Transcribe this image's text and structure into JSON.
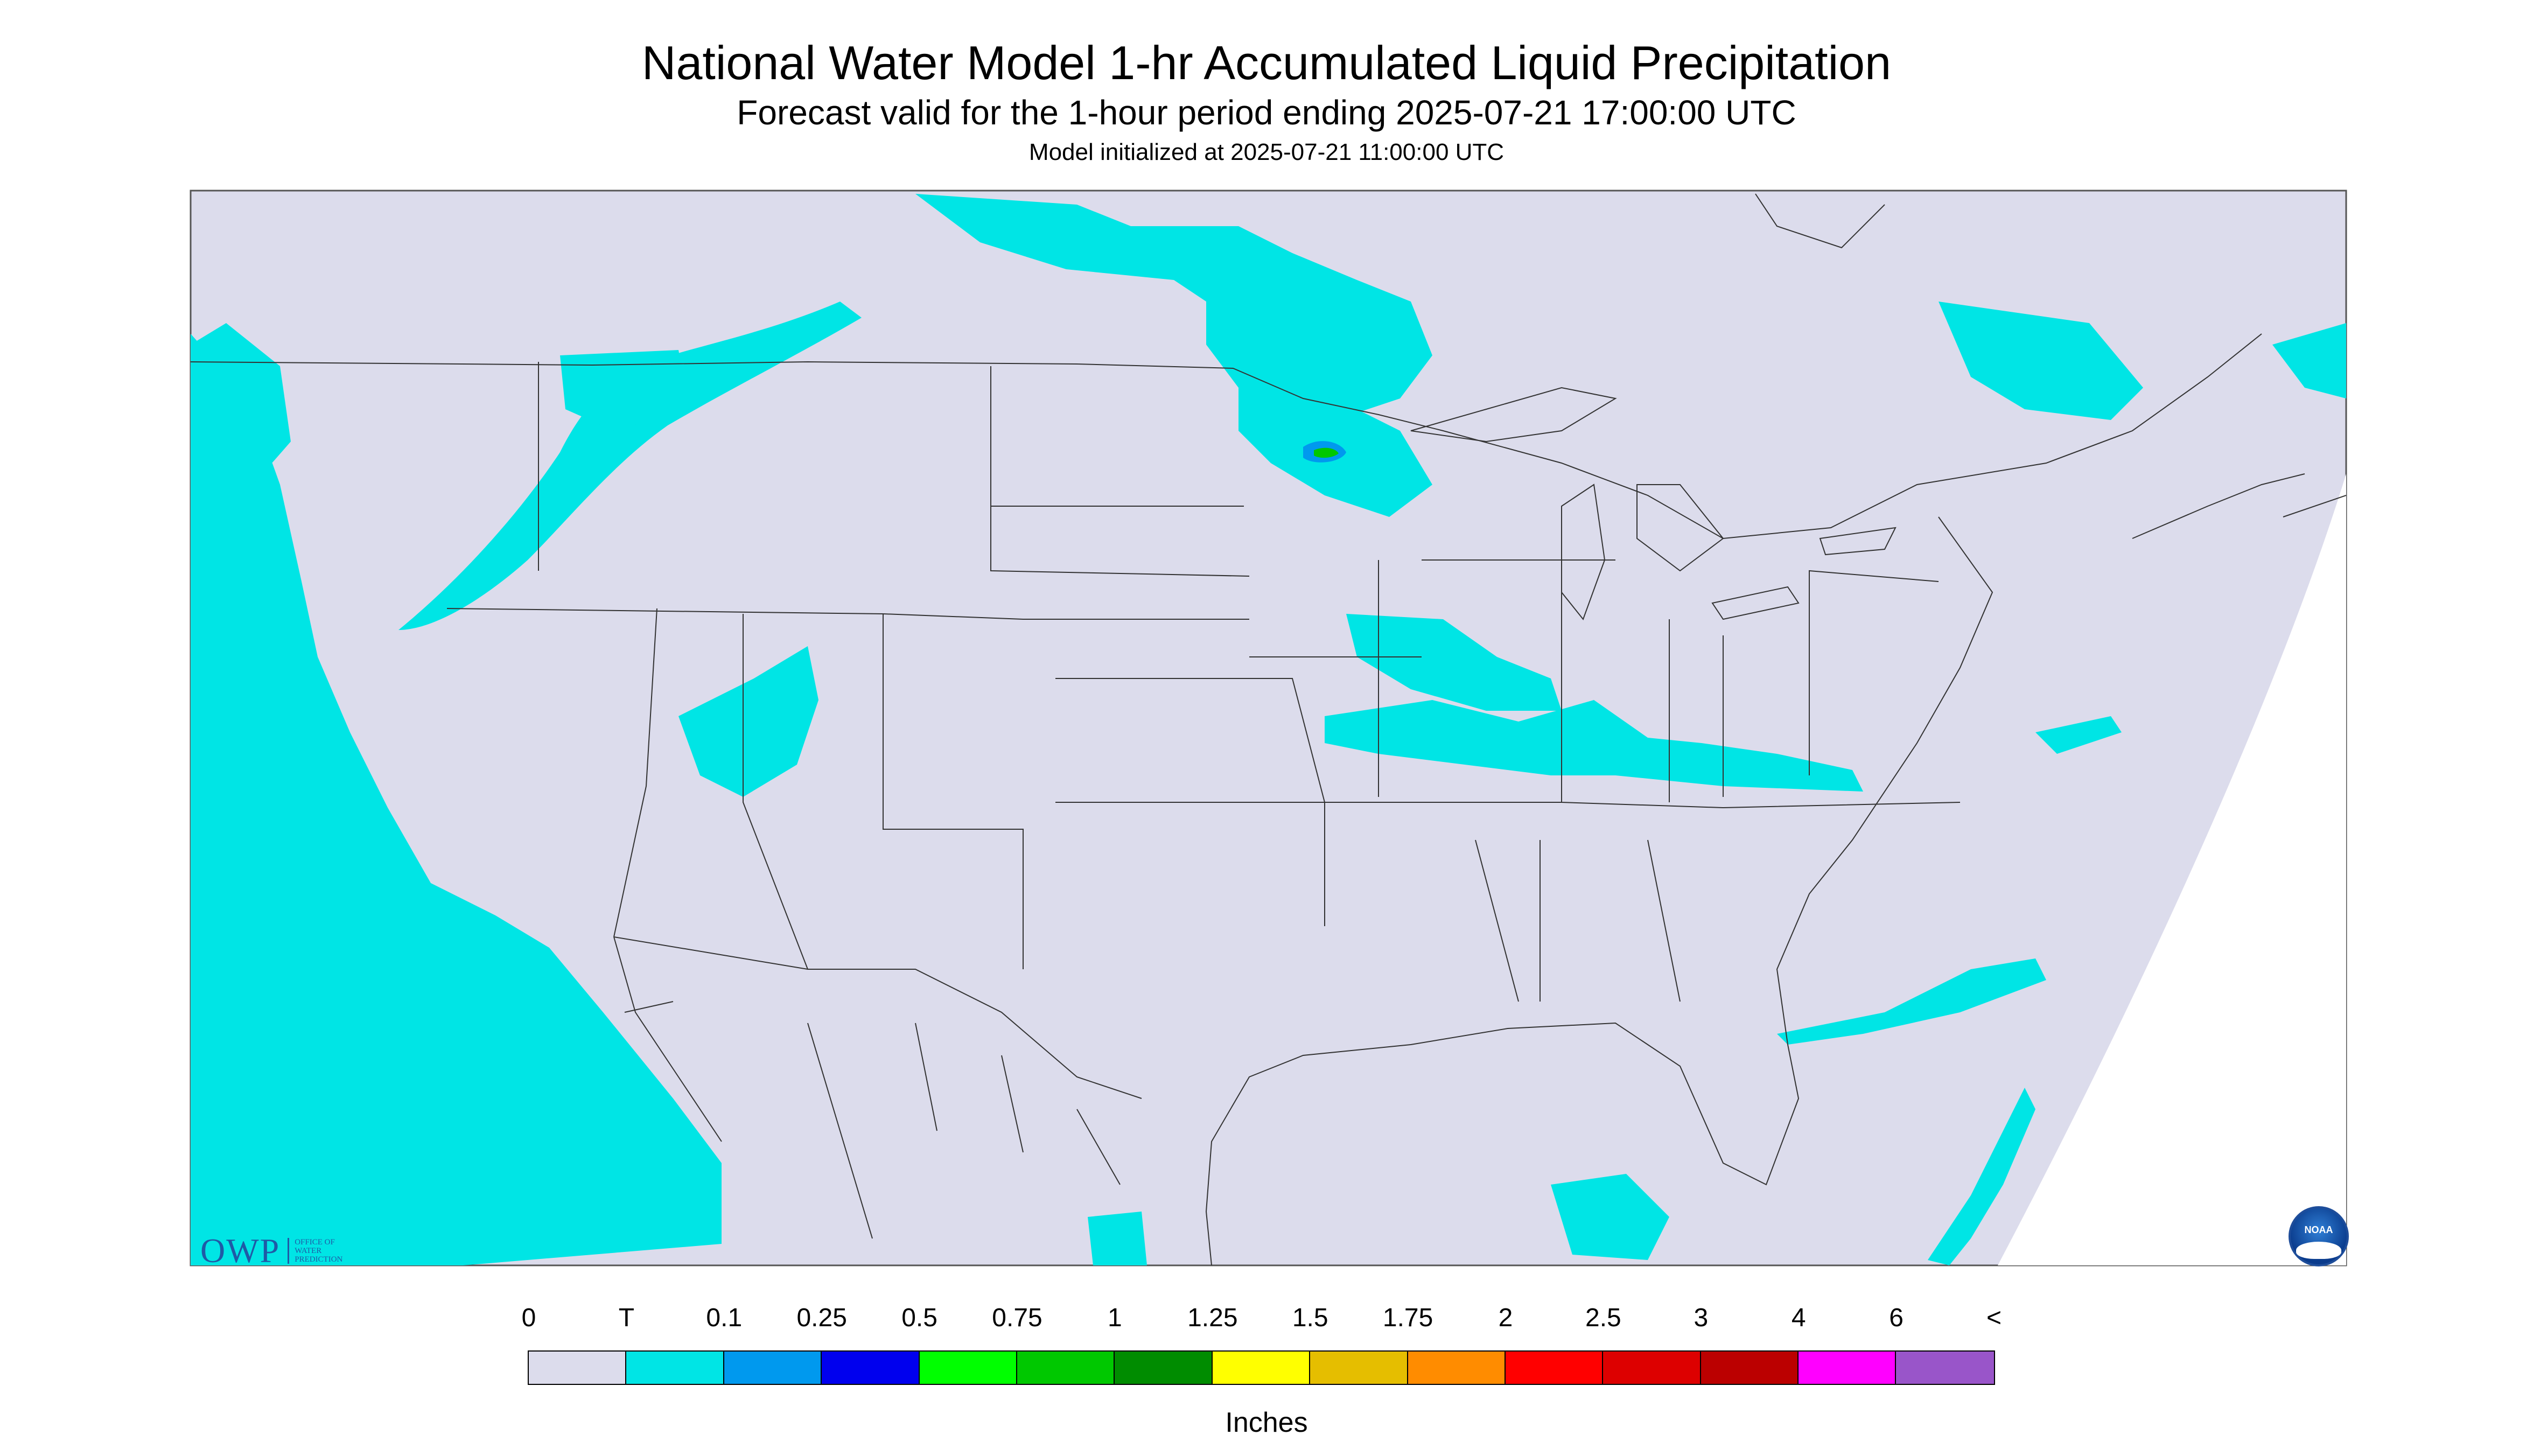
{
  "header": {
    "title": "National Water Model 1-hr Accumulated Liquid Precipitation",
    "subtitle": "Forecast valid for the 1-hour period ending 2025-07-21 17:00:00 UTC",
    "init_note": "Model initialized at 2025-07-21 11:00:00 UTC"
  },
  "logos": {
    "owp_mark": "OWP",
    "owp_text": [
      "OFFICE OF",
      "WATER",
      "PREDICTION"
    ],
    "noaa_text": "NOAA"
  },
  "legend": {
    "tick_labels": [
      "0",
      "T",
      "0.1",
      "0.25",
      "0.5",
      "0.75",
      "1",
      "1.25",
      "1.5",
      "1.75",
      "2",
      "2.5",
      "3",
      "4",
      "6",
      "<"
    ],
    "colors": [
      "#dcdcec",
      "#00e5e5",
      "#0099ee",
      "#0000ee",
      "#00ff00",
      "#00c800",
      "#008c00",
      "#ffff00",
      "#e5be00",
      "#ff8c00",
      "#ff0000",
      "#dd0000",
      "#bb0000",
      "#ff00ff",
      "#9955c9"
    ],
    "units": "Inches"
  },
  "map": {
    "background_color": "#dcdcec",
    "no_data_color": "#ffffff",
    "precip_color_light": "#00e5e5"
  }
}
